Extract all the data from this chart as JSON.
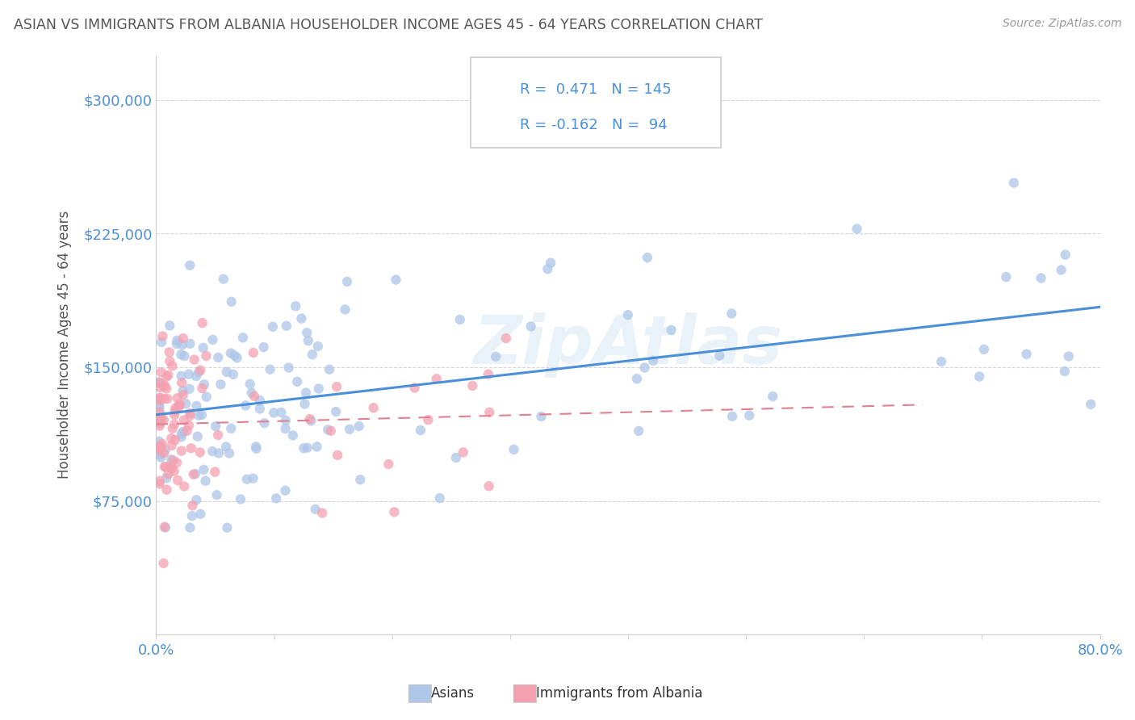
{
  "title": "ASIAN VS IMMIGRANTS FROM ALBANIA HOUSEHOLDER INCOME AGES 45 - 64 YEARS CORRELATION CHART",
  "source": "Source: ZipAtlas.com",
  "ylabel": "Householder Income Ages 45 - 64 years",
  "xmin": 0.0,
  "xmax": 0.8,
  "ymin": 0,
  "ymax": 325000,
  "yticks": [
    75000,
    150000,
    225000,
    300000
  ],
  "ytick_labels": [
    "$75,000",
    "$150,000",
    "$225,000",
    "$300,000"
  ],
  "r_asian": 0.471,
  "n_asian": 145,
  "r_albania": -0.162,
  "n_albania": 94,
  "asian_color": "#aec6e8",
  "albania_color": "#f4a0b0",
  "asian_line_color": "#4a90d9",
  "albania_line_color": "#e08090",
  "background_color": "#ffffff",
  "grid_color": "#cccccc",
  "legend_text_color": "#4a90d9",
  "title_color": "#555555",
  "axis_label_color": "#4a90d9"
}
